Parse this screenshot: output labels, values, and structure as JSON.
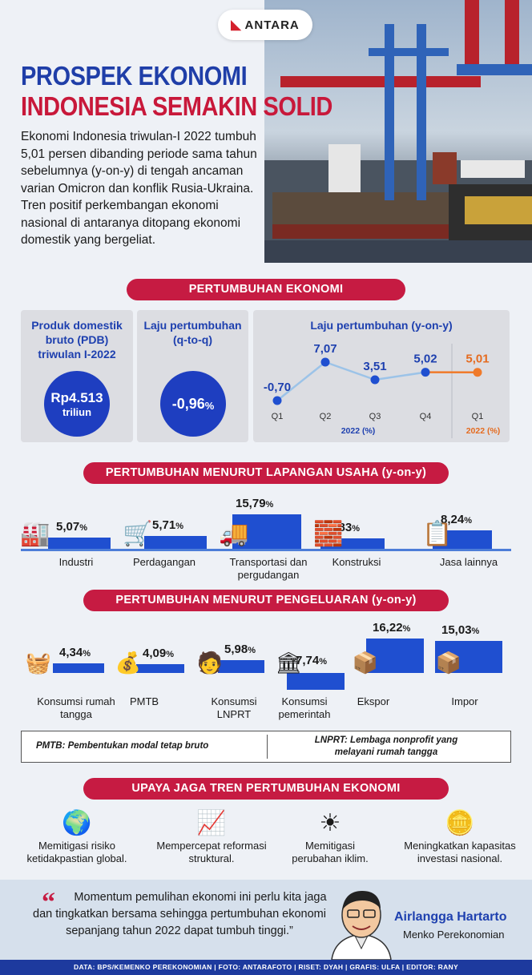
{
  "brand": "ANTARA",
  "title": {
    "line1": "PROSPEK EKONOMI",
    "line2": "INDONESIA SEMAKIN SOLID"
  },
  "intro": "Ekonomi Indonesia triwulan-I 2022 tumbuh 5,01 persen dibanding periode sama tahun sebelumnya (y-on-y) di tengah ancaman varian Omicron dan konflik Rusia-Ukraina. Tren positif perkembangan ekonomi nasional di antaranya ditopang ekonomi domestik yang bergeliat.",
  "section1": {
    "banner": "PERTUMBUHAN EKONOMI",
    "pdb": {
      "title": "Produk domestik bruto (PDB) triwulan I-2022",
      "value": "Rp4.513",
      "unit": "triliun"
    },
    "qtoq": {
      "title": "Laju pertumbuhan (q-to-q)",
      "value": "-0,96",
      "unit": "%"
    },
    "yony": {
      "title": "Laju pertumbuhan (y-on-y)",
      "year_2021": "2022 (%)",
      "year_2022": "2022 (%)"
    }
  },
  "chart_data": {
    "type": "line",
    "title": "Laju pertumbuhan (y-on-y)",
    "categories": [
      "Q1",
      "Q2",
      "Q3",
      "Q4",
      "Q1"
    ],
    "values": [
      -0.7,
      7.07,
      3.51,
      5.02,
      5.01
    ],
    "labels": [
      "-0,70",
      "7,07",
      "3,51",
      "5,02",
      "5,01"
    ],
    "colors": {
      "past": "#1f4fd0",
      "current": "#f07a2a",
      "line": "#9cc3e8"
    }
  },
  "section2": {
    "banner": "PERTUMBUHAN MENURUT LAPANGAN USAHA (y-on-y)",
    "items": [
      {
        "label": "Industri",
        "value": "5,07",
        "icon": "factory-icon",
        "glyph": "🏭"
      },
      {
        "label": "Perdagangan",
        "value": "5,71",
        "icon": "cart-icon",
        "glyph": "🛒"
      },
      {
        "label": "Transportasi dan pergudangan",
        "value": "15,79",
        "icon": "truck-icon",
        "glyph": "🚚"
      },
      {
        "label": "Konstruksi",
        "value": "4,83",
        "icon": "wheelbarrow-icon",
        "glyph": "🧱"
      },
      {
        "label": "Jasa lainnya",
        "value": "8,24",
        "icon": "document-icon",
        "glyph": "📋"
      }
    ],
    "numbers": [
      5.07,
      5.71,
      15.79,
      4.83,
      8.24
    ]
  },
  "section3": {
    "banner": "PERTUMBUHAN MENURUT PENGELUARAN (y-on-y)",
    "items": [
      {
        "label": "Konsumsi rumah tangga",
        "value": "4,34",
        "icon": "shopping-basket-icon",
        "glyph": "🧺"
      },
      {
        "label": "PMTB",
        "value": "4,09",
        "icon": "money-icon",
        "glyph": "💰"
      },
      {
        "label": "Konsumsi LNPRT",
        "value": "5,98",
        "icon": "person-icon",
        "glyph": "🧑"
      },
      {
        "label": "Konsumsi pemerintah",
        "value": "-7,74",
        "icon": "government-building-icon",
        "glyph": "🏛"
      },
      {
        "label": "Ekspor",
        "value": "16,22",
        "icon": "export-cart-icon",
        "glyph": "📦"
      },
      {
        "label": "Impor",
        "value": "15,03",
        "icon": "import-cart-icon",
        "glyph": "📦"
      }
    ],
    "numbers": [
      4.34,
      4.09,
      5.98,
      -7.74,
      16.22,
      15.03
    ],
    "note_left": "PMTB: Pembentukan modal tetap bruto",
    "note_right": "LNPRT: Lembaga nonprofit yang melayani rumah tangga"
  },
  "section4": {
    "banner": "UPAYA JAGA TREN PERTUMBUHAN EKONOMI",
    "items": [
      {
        "label": "Memitigasi risiko ketidakpastian global.",
        "icon": "globe-icon",
        "glyph": "🌍"
      },
      {
        "label": "Mempercepat reformasi struktural.",
        "icon": "growth-chart-icon",
        "glyph": "📈"
      },
      {
        "label": "Memitigasi perubahan iklim.",
        "icon": "sun-icon",
        "glyph": "☀"
      },
      {
        "label": "Meningkatkan kapasitas investasi nasional.",
        "icon": "coins-icon",
        "glyph": "🪙"
      }
    ]
  },
  "quote": {
    "text": "Momentum pemulihan ekonomi ini perlu kita jaga dan tingkatkan bersama sehingga pertumbuhan ekonomi sepanjang tahun 2022 dapat tumbuh tinggi.”",
    "name": "Airlangga Hartarto",
    "role": "Menko Perekonomian"
  },
  "footer": "DATA: BPS/KEMENKO PEREKONOMIAN   |   FOTO: ANTARAFOTO   |   RISET: DYAH   |   GRAFIS: ULFA   |   EDITOR: RANY"
}
